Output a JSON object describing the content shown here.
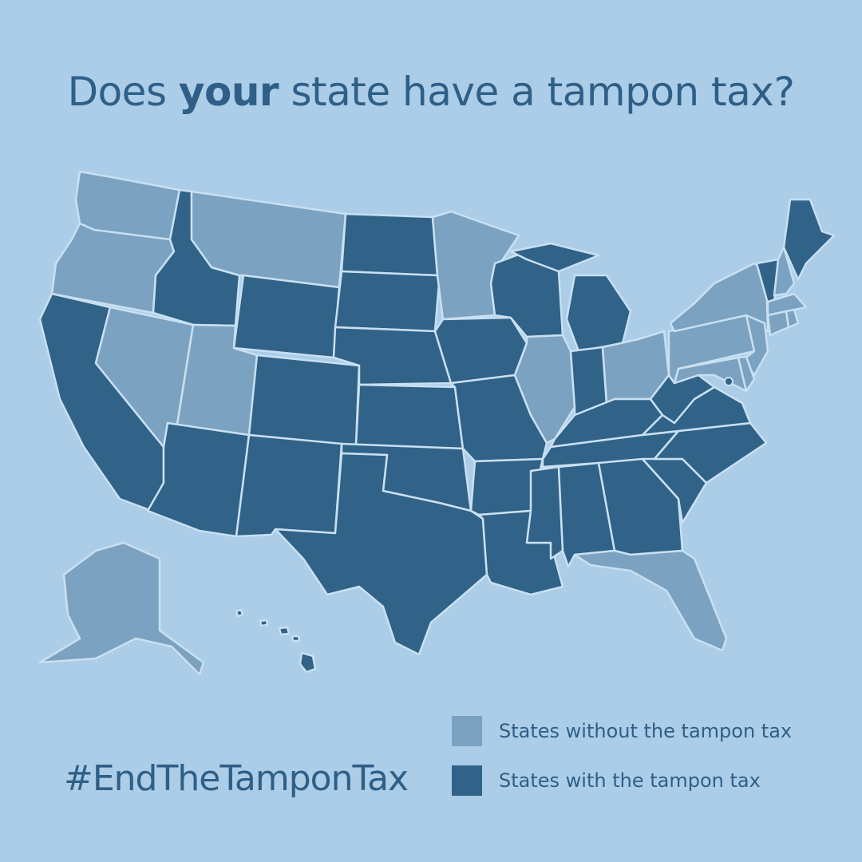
{
  "title": {
    "before": "Does ",
    "bold": "your",
    "after": " state have a tampon tax?"
  },
  "hashtag": "#EndTheTamponTax",
  "colors": {
    "background": "#abcde8",
    "no_tax": "#7ba2c0",
    "tax": "#316288",
    "border": "#c9e0f1",
    "text": "#2f5f86"
  },
  "legend": [
    {
      "label": "States without the tampon tax",
      "key": "no_tax"
    },
    {
      "label": "States with the tampon tax",
      "key": "tax"
    }
  ],
  "states": [
    {
      "id": "WA",
      "tax": false
    },
    {
      "id": "OR",
      "tax": false
    },
    {
      "id": "CA",
      "tax": true
    },
    {
      "id": "NV",
      "tax": false
    },
    {
      "id": "ID",
      "tax": true
    },
    {
      "id": "MT",
      "tax": false
    },
    {
      "id": "WY",
      "tax": true
    },
    {
      "id": "UT",
      "tax": false
    },
    {
      "id": "CO",
      "tax": true
    },
    {
      "id": "AZ",
      "tax": true
    },
    {
      "id": "NM",
      "tax": true
    },
    {
      "id": "ND",
      "tax": true
    },
    {
      "id": "SD",
      "tax": true
    },
    {
      "id": "NE",
      "tax": true
    },
    {
      "id": "KS",
      "tax": true
    },
    {
      "id": "OK",
      "tax": true
    },
    {
      "id": "TX",
      "tax": true
    },
    {
      "id": "MN",
      "tax": false
    },
    {
      "id": "IA",
      "tax": true
    },
    {
      "id": "MO",
      "tax": true
    },
    {
      "id": "AR",
      "tax": true
    },
    {
      "id": "LA",
      "tax": true
    },
    {
      "id": "WI",
      "tax": true
    },
    {
      "id": "IL",
      "tax": false
    },
    {
      "id": "MI",
      "tax": true
    },
    {
      "id": "IN",
      "tax": true
    },
    {
      "id": "OH",
      "tax": false
    },
    {
      "id": "KY",
      "tax": true
    },
    {
      "id": "TN",
      "tax": true
    },
    {
      "id": "MS",
      "tax": true
    },
    {
      "id": "AL",
      "tax": true
    },
    {
      "id": "GA",
      "tax": true
    },
    {
      "id": "FL",
      "tax": false
    },
    {
      "id": "SC",
      "tax": true
    },
    {
      "id": "NC",
      "tax": true
    },
    {
      "id": "VA",
      "tax": true
    },
    {
      "id": "WV",
      "tax": true
    },
    {
      "id": "PA",
      "tax": false
    },
    {
      "id": "NY",
      "tax": false
    },
    {
      "id": "NJ",
      "tax": false
    },
    {
      "id": "MD",
      "tax": false
    },
    {
      "id": "DE",
      "tax": false
    },
    {
      "id": "DC",
      "tax": true
    },
    {
      "id": "VT",
      "tax": true
    },
    {
      "id": "NH",
      "tax": false
    },
    {
      "id": "ME",
      "tax": true
    },
    {
      "id": "MA",
      "tax": false
    },
    {
      "id": "CT",
      "tax": false
    },
    {
      "id": "RI",
      "tax": false
    },
    {
      "id": "AK",
      "tax": false
    },
    {
      "id": "HI",
      "tax": true
    }
  ]
}
